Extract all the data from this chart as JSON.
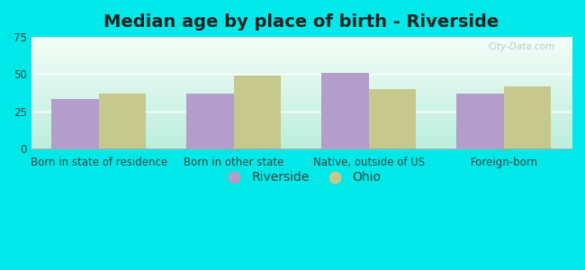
{
  "title": "Median age by place of birth - Riverside",
  "categories": [
    "Born in state of residence",
    "Born in other state",
    "Native, outside of US",
    "Foreign-born"
  ],
  "riverside_values": [
    33,
    37,
    51,
    37
  ],
  "ohio_values": [
    37,
    49,
    40,
    42
  ],
  "riverside_color": "#b39dca",
  "ohio_color": "#c5c98e",
  "ylim": [
    0,
    75
  ],
  "yticks": [
    0,
    25,
    50,
    75
  ],
  "bar_width": 0.35,
  "bg_top": "#f5fdf8",
  "bg_bottom": "#bbeedd",
  "outer_bg": "#00e8e8",
  "legend_riverside": "Riverside",
  "legend_ohio": "Ohio",
  "title_fontsize": 14,
  "tick_fontsize": 8.5,
  "legend_fontsize": 10,
  "watermark": "City-Data.com"
}
